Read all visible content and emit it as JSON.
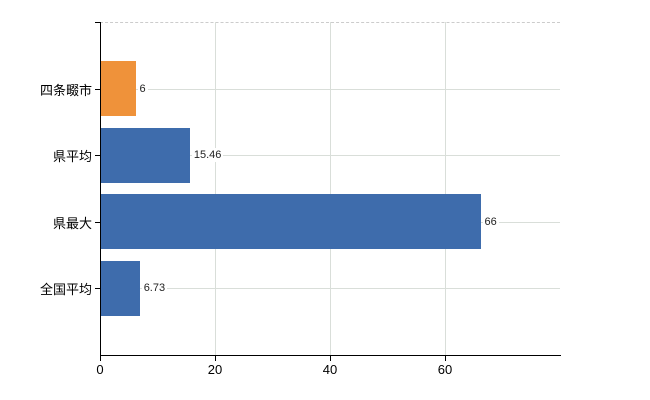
{
  "chart_data": {
    "type": "bar",
    "orientation": "horizontal",
    "categories": [
      "四条畷市",
      "県平均",
      "県最大",
      "全国平均"
    ],
    "values": [
      6,
      15.46,
      66,
      6.73
    ],
    "value_labels": [
      "6",
      "15.46",
      "66",
      "6.73"
    ],
    "bar_colors": [
      "#ef923a",
      "#3e6cac",
      "#3e6cac",
      "#3e6cac"
    ],
    "xlim": [
      0,
      80
    ],
    "x_ticks": [
      0,
      20,
      40,
      60
    ],
    "x_tick_labels": [
      "0",
      "20",
      "40",
      "60"
    ],
    "grid": true,
    "legend": false,
    "colors": {
      "grid": "#d9ded9",
      "plot_top_border": "#cccccc",
      "axis": "#000000",
      "tick_label": "#000000",
      "value_label": "#222222",
      "background": "#ffffff"
    }
  }
}
